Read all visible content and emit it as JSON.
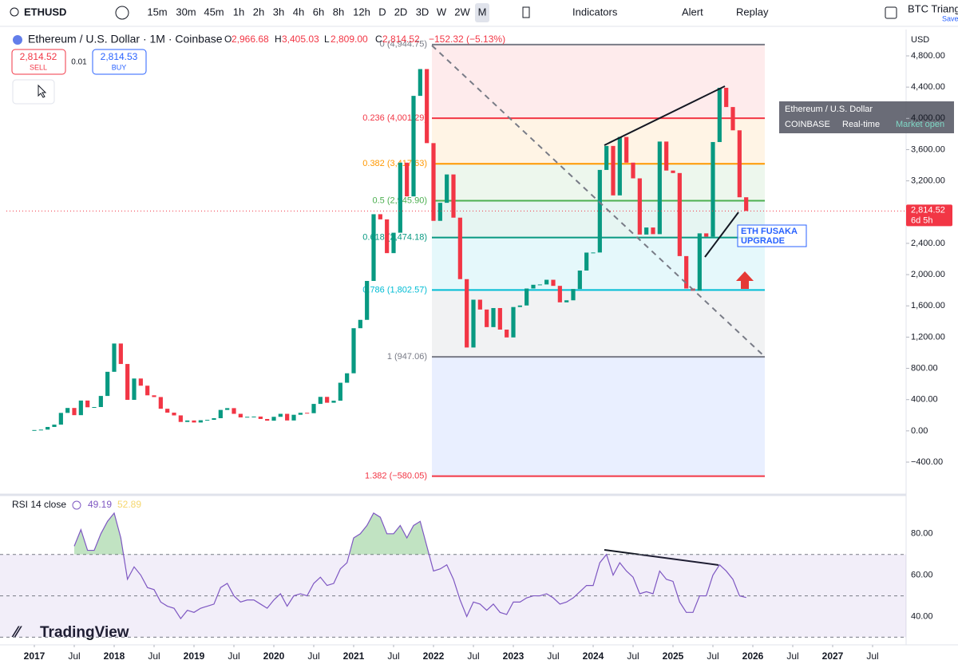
{
  "toolbar": {
    "symbol": "ETHUSD",
    "intervals": [
      "15m",
      "30m",
      "45m",
      "1h",
      "2h",
      "3h",
      "4h",
      "6h",
      "8h",
      "12h",
      "D",
      "2D",
      "3D",
      "W",
      "2W",
      "M"
    ],
    "indicators": "Indicators",
    "alert": "Alert",
    "replay": "Replay",
    "layout": "BTC Triang",
    "save": "Save"
  },
  "legend": {
    "title": "Ethereum / U.S. Dollar · 1M · Coinbase",
    "o_label": "O",
    "open": "2,966.68",
    "h_label": "H",
    "high": "3,405.03",
    "l_label": "L",
    "low": "2,809.00",
    "c_label": "C",
    "close": "2,814.52",
    "change": "−152.32 (−5.13%)"
  },
  "trade": {
    "sell_price": "2,814.52",
    "sell": "SELL",
    "spread": "0.01",
    "buy_price": "2,814.53",
    "buy": "BUY"
  },
  "tooltip": {
    "title": "Ethereum / U.S. Dollar",
    "exchange": "COINBASE",
    "feed": "Real-time",
    "status": "Market open"
  },
  "annotation": {
    "line1": "ETH FUSAKA",
    "line2": "UPGRADE"
  },
  "brand": "TradingView",
  "chart_data": {
    "type": "candlestick",
    "currency": "USD",
    "up_color": "#089981",
    "down_color": "#f23645",
    "x": [
      "2017-01",
      "2017-02",
      "2017-03",
      "2017-04",
      "2017-05",
      "2017-06",
      "2017-07",
      "2017-08",
      "2017-09",
      "2017-10",
      "2017-11",
      "2017-12",
      "2018-01",
      "2018-02",
      "2018-03",
      "2018-04",
      "2018-05",
      "2018-06",
      "2018-07",
      "2018-08",
      "2018-09",
      "2018-10",
      "2018-11",
      "2018-12",
      "2019-01",
      "2019-02",
      "2019-03",
      "2019-04",
      "2019-05",
      "2019-06",
      "2019-07",
      "2019-08",
      "2019-09",
      "2019-10",
      "2019-11",
      "2019-12",
      "2020-01",
      "2020-02",
      "2020-03",
      "2020-04",
      "2020-05",
      "2020-06",
      "2020-07",
      "2020-08",
      "2020-09",
      "2020-10",
      "2020-11",
      "2020-12",
      "2021-01",
      "2021-02",
      "2021-03",
      "2021-04",
      "2021-05",
      "2021-06",
      "2021-07",
      "2021-08",
      "2021-09",
      "2021-10",
      "2021-11",
      "2021-12",
      "2022-01",
      "2022-02",
      "2022-03",
      "2022-04",
      "2022-05",
      "2022-06",
      "2022-07",
      "2022-08",
      "2022-09",
      "2022-10",
      "2022-11",
      "2022-12",
      "2023-01",
      "2023-02",
      "2023-03",
      "2023-04",
      "2023-05",
      "2023-06",
      "2023-07",
      "2023-08",
      "2023-09",
      "2023-10",
      "2023-11",
      "2023-12",
      "2024-01",
      "2024-02",
      "2024-03",
      "2024-04",
      "2024-05",
      "2024-06",
      "2024-07",
      "2024-08",
      "2024-09",
      "2024-10",
      "2024-11",
      "2024-12",
      "2025-01",
      "2025-02",
      "2025-03",
      "2025-04",
      "2025-05",
      "2025-06",
      "2025-07",
      "2025-08",
      "2025-09",
      "2025-10",
      "2025-11",
      "2025-12"
    ],
    "close": [
      10.7,
      16,
      50,
      80,
      230,
      293,
      201,
      388,
      302,
      305,
      447,
      756,
      1118,
      856,
      397,
      670,
      578,
      455,
      433,
      283,
      233,
      198,
      114,
      133,
      107,
      136,
      141,
      162,
      268,
      291,
      218,
      172,
      180,
      183,
      152,
      130,
      180,
      218,
      133,
      206,
      231,
      226,
      345,
      435,
      360,
      386,
      616,
      737,
      1314,
      1421,
      1919,
      2773,
      2707,
      2275,
      2536,
      3433,
      3001,
      4288,
      4631,
      3683,
      2688,
      2919,
      3282,
      2729,
      1942,
      1067,
      1679,
      1553,
      1328,
      1572,
      1296,
      1196,
      1585,
      1605,
      1822,
      1870,
      1874,
      1934,
      1856,
      1645,
      1671,
      1816,
      2052,
      2282,
      2283,
      3340,
      3647,
      3014,
      3762,
      3433,
      3232,
      2513,
      2603,
      2518,
      3703,
      3332,
      3300,
      2237,
      1822,
      1794,
      2528,
      2486,
      3697,
      4391,
      4145,
      3847,
      2990,
      2814.52
    ],
    "close_tag": "2,814.52",
    "countdown": "6d 5h",
    "ylim": [
      -788,
      5137
    ],
    "yticks": [
      {
        "value": -400,
        "label": "−400.00"
      },
      {
        "value": 0,
        "label": "0.00"
      },
      {
        "value": 400,
        "label": "400.00"
      },
      {
        "value": 800,
        "label": "800.00"
      },
      {
        "value": 1200,
        "label": "1,200.00"
      },
      {
        "value": 1600,
        "label": "1,600.00"
      },
      {
        "value": 2000,
        "label": "2,000.00"
      },
      {
        "value": 2400,
        "label": "2,400.00"
      },
      {
        "value": 2800,
        "label": "2,800.00"
      },
      {
        "value": 3200,
        "label": "3,200.00"
      },
      {
        "value": 3600,
        "label": "3,600.00"
      },
      {
        "value": 4000,
        "label": "4,000.00"
      },
      {
        "value": 4400,
        "label": "4,400.00"
      },
      {
        "value": 4800,
        "label": "4,800.00"
      }
    ],
    "xticks": [
      {
        "value": "2017-01",
        "label": "2017"
      },
      {
        "value": "2017-07",
        "label": "Jul"
      },
      {
        "value": "2018-01",
        "label": "2018"
      },
      {
        "value": "2018-07",
        "label": "Jul"
      },
      {
        "value": "2019-01",
        "label": "2019"
      },
      {
        "value": "2019-07",
        "label": "Jul"
      },
      {
        "value": "2020-01",
        "label": "2020"
      },
      {
        "value": "2020-07",
        "label": "Jul"
      },
      {
        "value": "2021-01",
        "label": "2021"
      },
      {
        "value": "2021-07",
        "label": "Jul"
      },
      {
        "value": "2022-01",
        "label": "2022"
      },
      {
        "value": "2022-07",
        "label": "Jul"
      },
      {
        "value": "2023-01",
        "label": "2023"
      },
      {
        "value": "2023-07",
        "label": "Jul"
      },
      {
        "value": "2024-01",
        "label": "2024"
      },
      {
        "value": "2024-07",
        "label": "Jul"
      },
      {
        "value": "2025-01",
        "label": "2025"
      },
      {
        "value": "2025-07",
        "label": "Jul"
      },
      {
        "value": "2026-01",
        "label": "2026"
      },
      {
        "value": "2026-07",
        "label": "Jul"
      },
      {
        "value": "2027-01",
        "label": "2027"
      },
      {
        "value": "2027-07",
        "label": "Jul"
      }
    ],
    "fib": [
      {
        "label": "0 (4,944.75)",
        "price": 4944.75,
        "color": "#787b86",
        "band": "#f23645"
      },
      {
        "label": "0.236 (4,001.29)",
        "price": 4001.29,
        "color": "#f23645",
        "band": "#ff9800"
      },
      {
        "label": "0.382 (3,417.63)",
        "price": 3417.63,
        "color": "#ff9800",
        "band": "#4caf50"
      },
      {
        "label": "0.5 (2,945.90)",
        "price": 2945.9,
        "color": "#4caf50",
        "band": "#089981"
      },
      {
        "label": "0.618 (2,474.18)",
        "price": 2474.18,
        "color": "#089981",
        "band": "#00bcd4"
      },
      {
        "label": "0.786 (1,802.57)",
        "price": 1802.57,
        "color": "#00bcd4",
        "band": "#787b86"
      },
      {
        "label": "1 (947.06)",
        "price": 947.06,
        "color": "#787b86",
        "band": "#2962ff"
      },
      {
        "label": "1.382 (−580.05)",
        "price": -580.05,
        "color": "#f23645"
      }
    ],
    "rsi": {
      "name": "RSI 14 close",
      "color": "#7e57c2",
      "ma_value": "52.89",
      "ylim": [
        26.3,
        96.9
      ],
      "levels": [
        30,
        50,
        70
      ],
      "yticks": [
        {
          "value": 40,
          "label": "40.00"
        },
        {
          "value": 60,
          "label": "60.00"
        },
        {
          "value": 80,
          "label": "80.00"
        }
      ],
      "values": [
        null,
        null,
        null,
        null,
        null,
        null,
        74,
        82,
        72,
        72,
        80,
        86,
        90,
        78,
        58,
        64,
        60,
        54,
        53,
        47,
        45,
        44,
        39,
        43,
        42,
        44,
        45,
        46,
        54,
        56,
        50,
        47,
        48,
        48,
        46,
        44,
        48,
        51,
        45,
        50,
        51,
        50,
        56,
        59,
        55,
        56,
        63,
        66,
        78,
        80,
        84,
        90,
        88,
        80,
        80,
        84,
        78,
        84,
        86,
        74,
        62,
        63,
        65,
        58,
        48,
        40,
        47,
        46,
        43,
        46,
        42,
        41,
        47,
        47,
        49,
        50,
        50,
        51,
        49,
        46,
        47,
        49,
        52,
        55,
        55,
        66,
        70,
        60,
        66,
        62,
        59,
        51,
        52,
        51,
        62,
        58,
        57,
        47,
        42,
        42,
        50,
        50,
        60,
        65,
        62,
        58,
        50,
        49.19
      ]
    }
  }
}
